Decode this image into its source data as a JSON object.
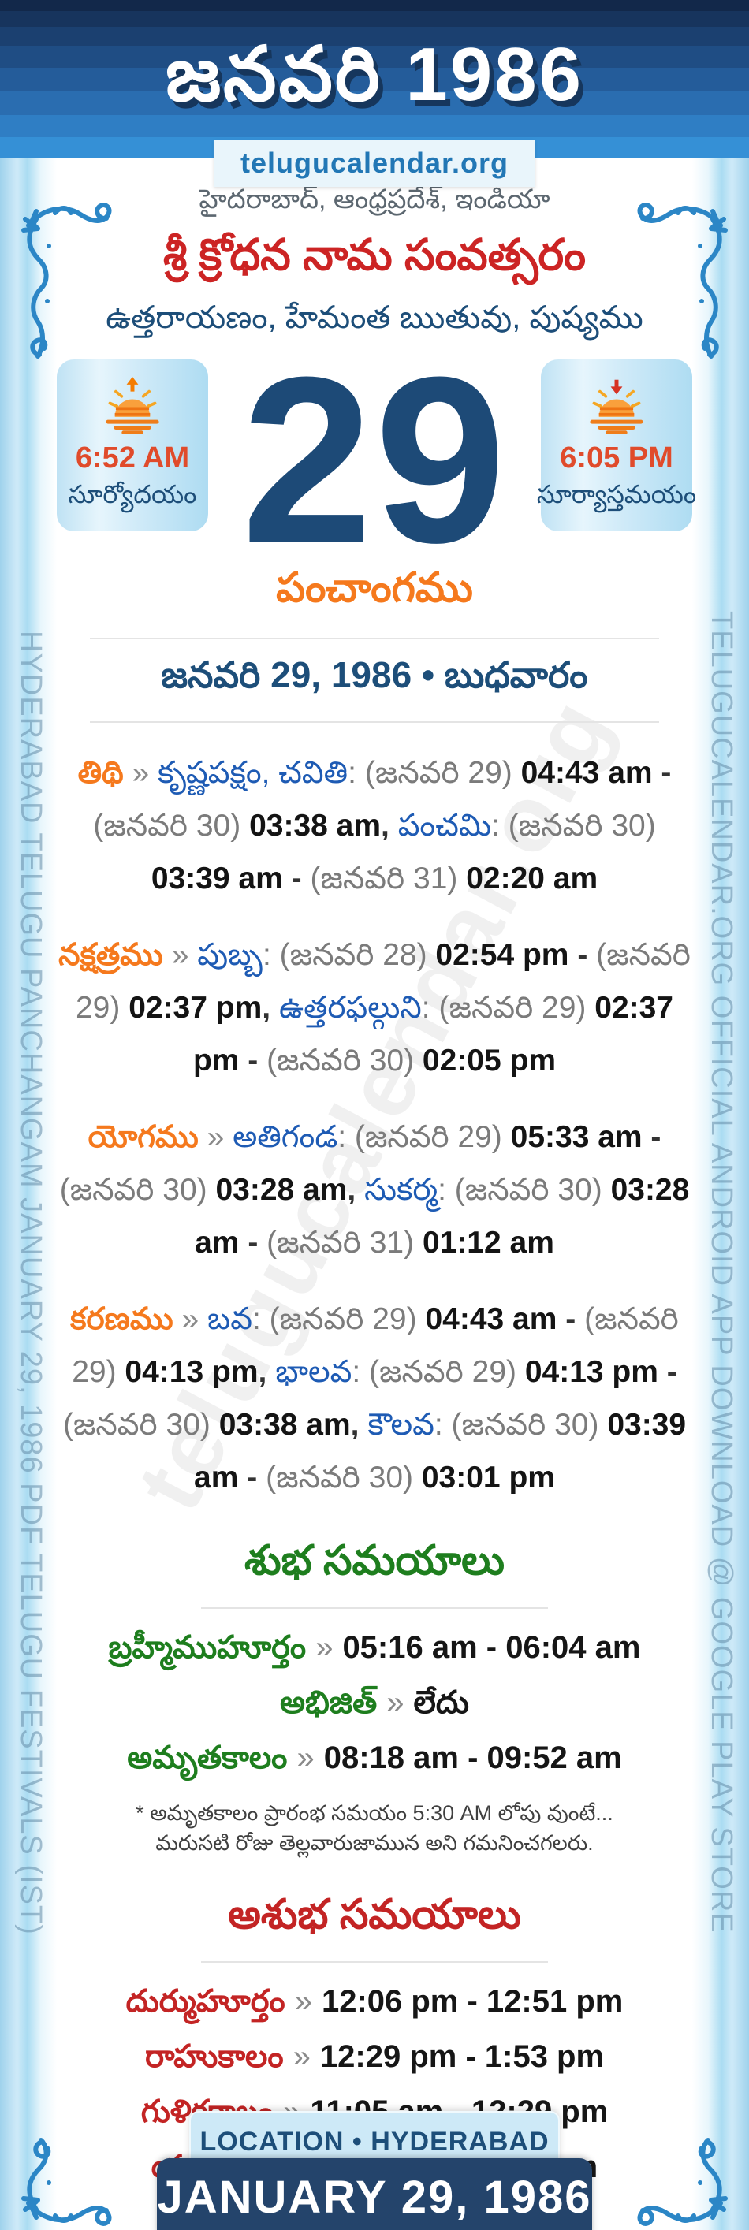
{
  "banner": {
    "title": "జనవరి 1986",
    "brand": "telugucalendar.org"
  },
  "header": {
    "location_line": "హైదరాబాద్, ఆంధ్రప్రదేశ్, ఇండియా",
    "samvatsaram_line": "శ్రీ క్రోధన నామ సంవత్సరం",
    "ayanam_line": "ఉత్తరాయణం, హేమంత ఋతువు, పుష్యము"
  },
  "day": {
    "number": "29",
    "sunrise": {
      "time": "6:52 AM",
      "label": "సూర్యోదయం"
    },
    "sunset": {
      "time": "6:05 PM",
      "label": "సూర్యాస్తమయం"
    }
  },
  "panchangam": {
    "heading": "పంచాంగము",
    "date_line": "జనవరి 29, 1986 • బుధవారం",
    "tithi": {
      "segments": [
        [
          "lbl",
          "తిథి"
        ],
        [
          "sep",
          " » "
        ],
        [
          "name",
          "కృష్ణపక్షం, చవితి"
        ],
        [
          "date",
          ": (జనవరి 29) "
        ],
        [
          "time",
          "04:43 am"
        ],
        [
          "dash",
          " - "
        ],
        [
          "date",
          "(జనవరి 30) "
        ],
        [
          "time",
          "03:38 am"
        ],
        [
          "dash",
          ", "
        ],
        [
          "name",
          "పంచమి"
        ],
        [
          "date",
          ": (జనవరి 30) "
        ],
        [
          "time",
          "03:39 am"
        ],
        [
          "dash",
          " - "
        ],
        [
          "date",
          "(జనవరి 31) "
        ],
        [
          "time",
          "02:20 am"
        ]
      ]
    },
    "nakshatram": {
      "segments": [
        [
          "lbl",
          "నక్షత్రము"
        ],
        [
          "sep",
          " » "
        ],
        [
          "name",
          "పుబ్బ"
        ],
        [
          "date",
          ": (జనవరి 28) "
        ],
        [
          "time",
          "02:54 pm"
        ],
        [
          "dash",
          " - "
        ],
        [
          "date",
          "(జనవరి 29) "
        ],
        [
          "time",
          "02:37 pm"
        ],
        [
          "dash",
          ", "
        ],
        [
          "name",
          "ఉత్తరఫల్గుని"
        ],
        [
          "date",
          ": (జనవరి 29) "
        ],
        [
          "time",
          "02:37 pm"
        ],
        [
          "dash",
          " - "
        ],
        [
          "date",
          "(జనవరి 30) "
        ],
        [
          "time",
          "02:05 pm"
        ]
      ]
    },
    "yogam": {
      "segments": [
        [
          "lbl",
          "యోగము"
        ],
        [
          "sep",
          " » "
        ],
        [
          "name",
          "అతిగండ"
        ],
        [
          "date",
          ": (జనవరి 29) "
        ],
        [
          "time",
          "05:33 am"
        ],
        [
          "dash",
          " - "
        ],
        [
          "date",
          "(జనవరి 30) "
        ],
        [
          "time",
          "03:28 am"
        ],
        [
          "dash",
          ", "
        ],
        [
          "name",
          "సుకర్మ"
        ],
        [
          "date",
          ": (జనవరి 30) "
        ],
        [
          "time",
          "03:28 am"
        ],
        [
          "dash",
          " - "
        ],
        [
          "date",
          "(జనవరి 31) "
        ],
        [
          "time",
          "01:12 am"
        ]
      ]
    },
    "karanam": {
      "segments": [
        [
          "lbl",
          "కరణము"
        ],
        [
          "sep",
          " » "
        ],
        [
          "name",
          "బవ"
        ],
        [
          "date",
          ": (జనవరి 29) "
        ],
        [
          "time",
          "04:43 am"
        ],
        [
          "dash",
          " - "
        ],
        [
          "date",
          "(జనవరి 29) "
        ],
        [
          "time",
          "04:13 pm"
        ],
        [
          "dash",
          ", "
        ],
        [
          "name",
          "భాలవ"
        ],
        [
          "date",
          ": (జనవరి 29) "
        ],
        [
          "time",
          "04:13 pm"
        ],
        [
          "dash",
          " - "
        ],
        [
          "date",
          "(జనవరి 30) "
        ],
        [
          "time",
          "03:38 am"
        ],
        [
          "dash",
          ", "
        ],
        [
          "name",
          "కౌలవ"
        ],
        [
          "date",
          ": (జనవరి 30) "
        ],
        [
          "time",
          "03:39 am"
        ],
        [
          "dash",
          " - "
        ],
        [
          "date",
          "(జనవరి 30) "
        ],
        [
          "time",
          "03:01 pm"
        ]
      ]
    }
  },
  "shubha": {
    "heading": "శుభ సమయాలు",
    "items": [
      {
        "label": "బ్రహ్మీముహూర్తం",
        "sep": "»",
        "value": "05:16 am - 06:04 am"
      },
      {
        "label": "అభిజిత్",
        "sep": "»",
        "value": "లేదు"
      },
      {
        "label": "అమృతకాలం",
        "sep": "»",
        "value": "08:18 am - 09:52 am"
      }
    ],
    "note": "* అమృతకాలం ప్రారంభ సమయం 5:30 AM లోపు వుంటే... మరుసటి రోజు తెల్లవారుజామున అని గమనించగలరు."
  },
  "ashubha": {
    "heading": "అశుభ సమయాలు",
    "items": [
      {
        "label": "దుర్ముహూర్తం",
        "sep": "»",
        "value": "12:06 pm - 12:51 pm"
      },
      {
        "label": "రాహుకాలం",
        "sep": "»",
        "value": "12:29 pm - 1:53 pm"
      },
      {
        "label": "గుళికకాలం",
        "sep": "»",
        "value": "11:05 am - 12:29 pm"
      },
      {
        "label": "యమగండం",
        "sep": "»",
        "value": "8:16 am - 9:41 am"
      }
    ]
  },
  "footer": {
    "location_badge": "LOCATION • HYDERABAD",
    "date_banner": "JANUARY 29, 1986"
  },
  "side_text": {
    "left": "HYDERABAD TELUGU PANCHANGAM JANUARY 29, 1986 PDF TELUGU FESTIVALS (IST)",
    "right": "TELUGUCALENDAR.ORG OFFICIAL ANDROID APP DOWNLOAD @ GOOGLE PLAY STORE"
  },
  "watermark": "telugucalendar.org",
  "palette": {
    "banner_blue_top": "#12284a",
    "banner_blue_bottom": "#3590d6",
    "accent_orange": "#f5791d",
    "accent_green": "#1e7e1e",
    "accent_red": "#c32424",
    "navy_day": "#1d4a77",
    "brand_blue": "#2277b5",
    "name_blue": "#1e5bb4",
    "date_gray": "#7b7b7b",
    "heading_blue": "#1d4e79",
    "sun_time_red": "#e04b2b"
  }
}
